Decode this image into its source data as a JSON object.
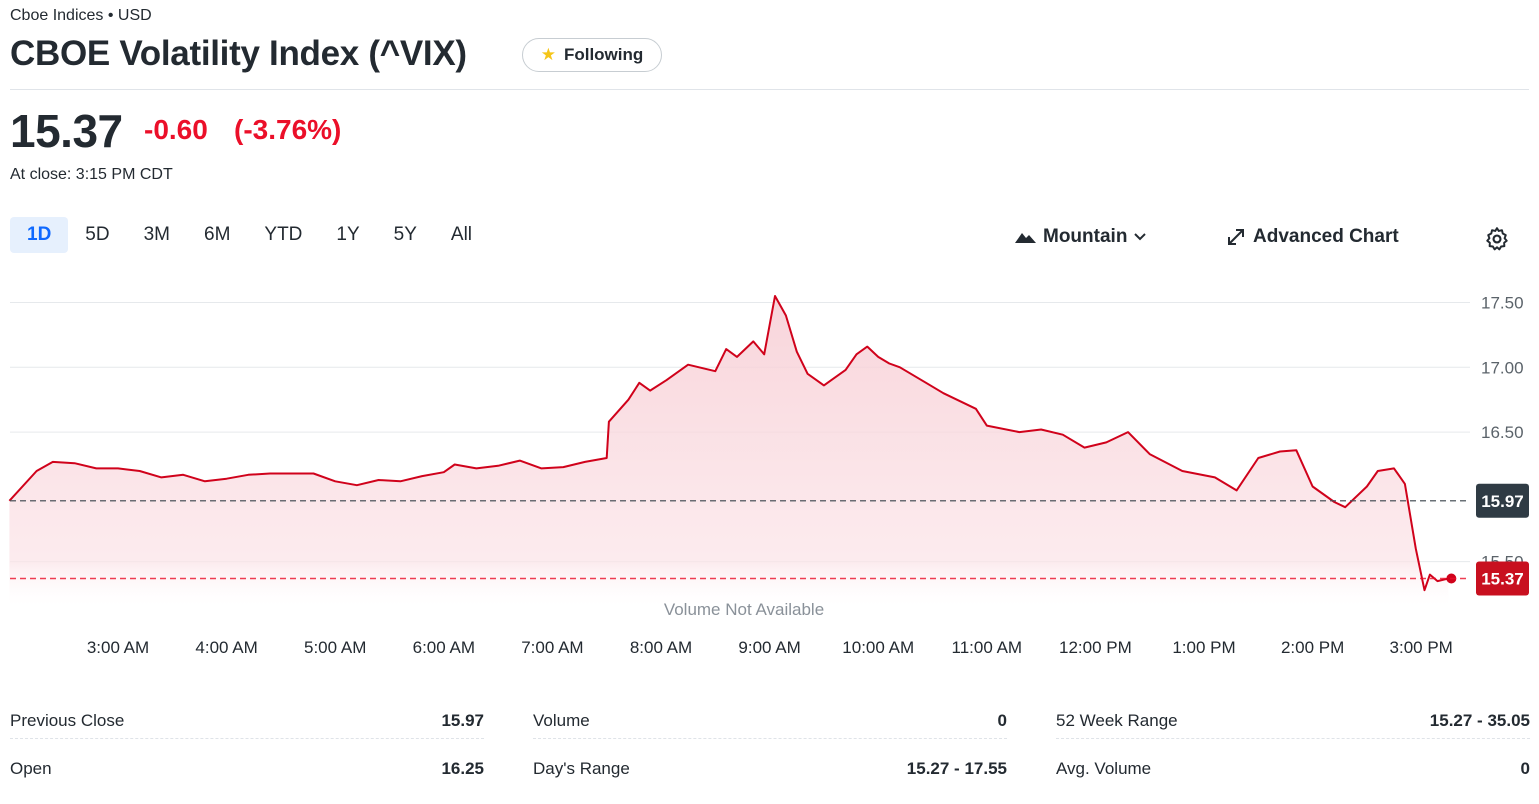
{
  "header": {
    "exchange": "Cboe Indices • USD",
    "title": "CBOE Volatility Index (^VIX)",
    "follow_label": "Following"
  },
  "quote": {
    "price": "15.37",
    "change": "-0.60",
    "change_pct": "(-3.76%)",
    "close_time": "At close: 3:15 PM CDT",
    "accent": "#eb0f29"
  },
  "toolbar": {
    "ranges": [
      "1D",
      "5D",
      "3M",
      "6M",
      "YTD",
      "1Y",
      "5Y",
      "All"
    ],
    "active_range": "1D",
    "chart_type_label": "Mountain",
    "advanced_label": "Advanced Chart"
  },
  "chart_data": {
    "type": "area",
    "title": "",
    "xlabel": "",
    "ylabel": "",
    "x_ticks": [
      "3:00 AM",
      "4:00 AM",
      "5:00 AM",
      "6:00 AM",
      "7:00 AM",
      "8:00 AM",
      "9:00 AM",
      "10:00 AM",
      "11:00 AM",
      "12:00 PM",
      "1:00 PM",
      "2:00 PM",
      "3:00 PM"
    ],
    "y_ticks": [
      "17.50",
      "17.00",
      "16.50",
      "15.50"
    ],
    "ylim": [
      15.2,
      17.62
    ],
    "x_range": [
      2.0,
      15.3
    ],
    "reference_lines": [
      {
        "label": "15.97",
        "value": 15.97,
        "color": "#464e56"
      },
      {
        "label": "15.37",
        "value": 15.37,
        "color": "#eb0f29"
      }
    ],
    "volume_note": "Volume Not Available",
    "series": [
      {
        "color": "#d0021b",
        "fill": "#f9d9de",
        "points": [
          [
            2.0,
            15.97
          ],
          [
            2.25,
            16.2
          ],
          [
            2.4,
            16.27
          ],
          [
            2.6,
            16.26
          ],
          [
            2.8,
            16.22
          ],
          [
            3.0,
            16.22
          ],
          [
            3.2,
            16.2
          ],
          [
            3.4,
            16.15
          ],
          [
            3.6,
            16.17
          ],
          [
            3.8,
            16.12
          ],
          [
            4.0,
            16.14
          ],
          [
            4.2,
            16.17
          ],
          [
            4.4,
            16.18
          ],
          [
            4.6,
            16.18
          ],
          [
            4.8,
            16.18
          ],
          [
            5.0,
            16.12
          ],
          [
            5.2,
            16.09
          ],
          [
            5.4,
            16.13
          ],
          [
            5.6,
            16.12
          ],
          [
            5.8,
            16.16
          ],
          [
            6.0,
            16.19
          ],
          [
            6.1,
            16.25
          ],
          [
            6.3,
            16.22
          ],
          [
            6.5,
            16.24
          ],
          [
            6.7,
            16.28
          ],
          [
            6.9,
            16.22
          ],
          [
            7.1,
            16.23
          ],
          [
            7.3,
            16.27
          ],
          [
            7.5,
            16.3
          ],
          [
            7.52,
            16.58
          ],
          [
            7.7,
            16.75
          ],
          [
            7.8,
            16.88
          ],
          [
            7.9,
            16.82
          ],
          [
            8.05,
            16.9
          ],
          [
            8.25,
            17.02
          ],
          [
            8.5,
            16.97
          ],
          [
            8.6,
            17.14
          ],
          [
            8.7,
            17.08
          ],
          [
            8.85,
            17.2
          ],
          [
            8.95,
            17.1
          ],
          [
            9.05,
            17.55
          ],
          [
            9.15,
            17.4
          ],
          [
            9.25,
            17.12
          ],
          [
            9.35,
            16.95
          ],
          [
            9.5,
            16.86
          ],
          [
            9.7,
            16.98
          ],
          [
            9.8,
            17.1
          ],
          [
            9.9,
            17.16
          ],
          [
            10.0,
            17.08
          ],
          [
            10.1,
            17.03
          ],
          [
            10.2,
            17.0
          ],
          [
            10.4,
            16.9
          ],
          [
            10.6,
            16.8
          ],
          [
            10.9,
            16.68
          ],
          [
            11.0,
            16.55
          ],
          [
            11.3,
            16.5
          ],
          [
            11.5,
            16.52
          ],
          [
            11.7,
            16.48
          ],
          [
            11.9,
            16.38
          ],
          [
            12.1,
            16.42
          ],
          [
            12.3,
            16.5
          ],
          [
            12.5,
            16.33
          ],
          [
            12.8,
            16.2
          ],
          [
            13.1,
            16.15
          ],
          [
            13.3,
            16.05
          ],
          [
            13.5,
            16.3
          ],
          [
            13.7,
            16.35
          ],
          [
            13.85,
            16.36
          ],
          [
            14.0,
            16.08
          ],
          [
            14.2,
            15.96
          ],
          [
            14.3,
            15.92
          ],
          [
            14.5,
            16.08
          ],
          [
            14.6,
            16.2
          ],
          [
            14.75,
            16.22
          ],
          [
            14.85,
            16.1
          ],
          [
            14.95,
            15.6
          ],
          [
            15.03,
            15.28
          ],
          [
            15.08,
            15.4
          ],
          [
            15.15,
            15.35
          ],
          [
            15.25,
            15.37
          ]
        ]
      }
    ]
  },
  "stats": {
    "col1": [
      {
        "label": "Previous Close",
        "value": "15.97"
      },
      {
        "label": "Open",
        "value": "16.25"
      }
    ],
    "col2": [
      {
        "label": "Volume",
        "value": "0"
      },
      {
        "label": "Day's Range",
        "value": "15.27 - 17.55"
      }
    ],
    "col3": [
      {
        "label": "52 Week Range",
        "value": "15.27 - 35.05"
      },
      {
        "label": "Avg. Volume",
        "value": "0"
      }
    ]
  },
  "icons": {
    "follow": "star-icon",
    "chart_type": "mountain-icon",
    "dropdown": "chevron-down-icon",
    "advanced": "expand-icon",
    "settings": "gear-icon"
  }
}
